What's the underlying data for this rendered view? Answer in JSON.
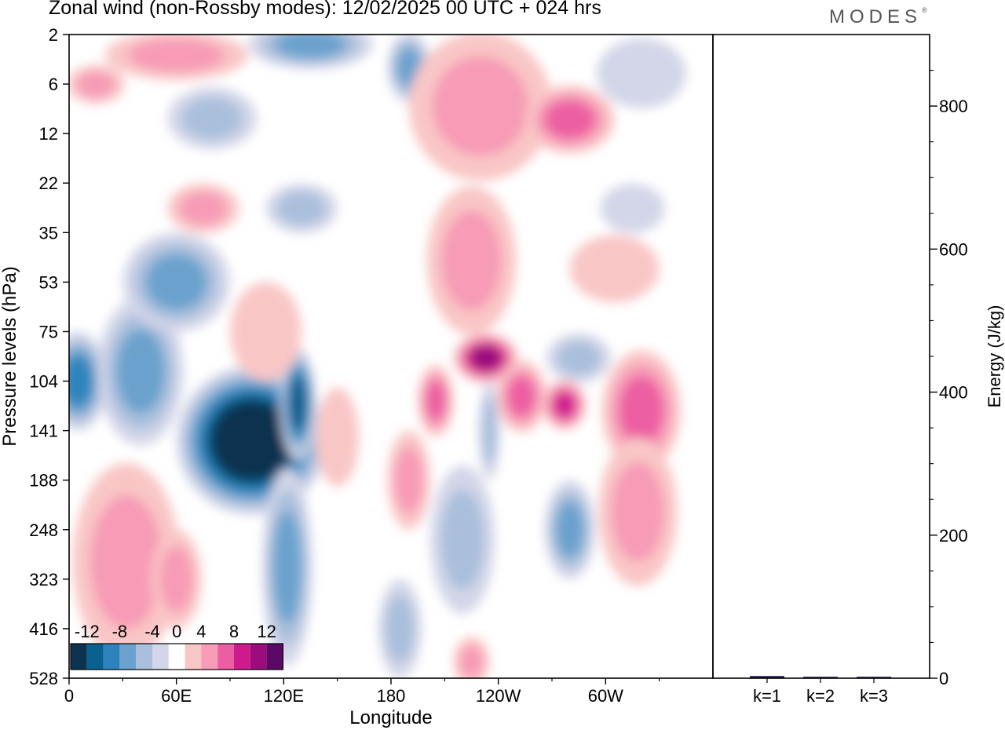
{
  "header": {
    "title": "Zonal wind (non-Rossby modes):  12/02/2025  00 UTC  + 024 hrs",
    "logo": "MODES",
    "logo_mark": "®"
  },
  "colors": {
    "negative": [
      "#0d3350",
      "#09618e",
      "#2d84bc",
      "#6aa2cd",
      "#a9bfdc",
      "#d3d6e8"
    ],
    "zero": "#ffffff",
    "positive": [
      "#f9c6c6",
      "#f79bb6",
      "#ec5ea2",
      "#cf1a8d",
      "#9b0c7d",
      "#5a0a66"
    ],
    "axis": "#000000",
    "bar": "#1a1a50"
  },
  "chart_data": [
    {
      "type": "heatmap",
      "variable": "zonal wind",
      "xlabel": "Longitude",
      "ylabel": "Pressure levels (hPa)",
      "x_ticks": [
        "0",
        "60E",
        "120E",
        "180",
        "120W",
        "60W"
      ],
      "y_ticks": [
        "2",
        "6",
        "12",
        "22",
        "35",
        "53",
        "75",
        "104",
        "141",
        "188",
        "248",
        "323",
        "416",
        "528"
      ],
      "colorbar": {
        "labels": [
          "-12",
          "-8",
          "-4",
          "0",
          "4",
          "8",
          "12"
        ],
        "bins": [
          -14,
          -12,
          -10,
          -8,
          -6,
          -4,
          -2,
          2,
          4,
          6,
          8,
          10,
          12,
          14
        ]
      },
      "features": [
        {
          "sign": "negative",
          "peak": -14,
          "lon_center": 102,
          "level_center": 141,
          "lon_width": 42,
          "level_span": [
            104,
            248
          ]
        },
        {
          "sign": "negative",
          "peak": -11,
          "lon_center": 128,
          "level_center": 118,
          "lon_width": 10,
          "level_span": [
            85,
            170
          ]
        },
        {
          "sign": "negative",
          "peak": -7,
          "lon_center": 122,
          "level_center": 290,
          "lon_width": 14,
          "level_span": [
            188,
            528
          ]
        },
        {
          "sign": "negative",
          "peak": -8,
          "lon_center": 5,
          "level_center": 104,
          "lon_width": 16,
          "level_span": [
            75,
            141
          ]
        },
        {
          "sign": "negative",
          "peak": -6,
          "lon_center": 40,
          "level_center": 104,
          "lon_width": 24,
          "level_span": [
            53,
            141
          ]
        },
        {
          "sign": "negative",
          "peak": -6,
          "lon_center": 60,
          "level_center": 53,
          "lon_width": 30,
          "level_span": [
            35,
            75
          ]
        },
        {
          "sign": "negative",
          "peak": -6,
          "lon_center": 135,
          "level_center": 2,
          "lon_width": 35,
          "level_span": [
            2,
            6
          ]
        },
        {
          "sign": "negative",
          "peak": -6,
          "lon_center": 190,
          "level_center": 4,
          "lon_width": 12,
          "level_span": [
            2,
            8
          ]
        },
        {
          "sign": "negative",
          "peak": -5,
          "lon_center": 80,
          "level_center": 10,
          "lon_width": 25,
          "level_span": [
            6,
            14
          ]
        },
        {
          "sign": "negative",
          "peak": -4,
          "lon_center": 130,
          "level_center": 28,
          "lon_width": 20,
          "level_span": [
            22,
            35
          ]
        },
        {
          "sign": "negative",
          "peak": -5,
          "lon_center": 220,
          "level_center": 248,
          "lon_width": 18,
          "level_span": [
            188,
            416
          ]
        },
        {
          "sign": "negative",
          "peak": -7,
          "lon_center": 280,
          "level_center": 248,
          "lon_width": 14,
          "level_span": [
            188,
            323
          ]
        },
        {
          "sign": "negative",
          "peak": -4,
          "lon_center": 235,
          "level_center": 141,
          "lon_width": 6,
          "level_span": [
            104,
            188
          ]
        },
        {
          "sign": "negative",
          "peak": -5,
          "lon_center": 285,
          "level_center": 90,
          "lon_width": 18,
          "level_span": [
            75,
            104
          ]
        },
        {
          "sign": "negative",
          "peak": -4,
          "lon_center": 185,
          "level_center": 416,
          "lon_width": 12,
          "level_span": [
            323,
            528
          ]
        },
        {
          "sign": "negative",
          "peak": -3,
          "lon_center": 315,
          "level_center": 28,
          "lon_width": 18,
          "level_span": [
            22,
            35
          ]
        },
        {
          "sign": "negative",
          "peak": -3,
          "lon_center": 320,
          "level_center": 5,
          "lon_width": 25,
          "level_span": [
            2,
            8
          ]
        },
        {
          "sign": "positive",
          "peak": 11,
          "lon_center": 233,
          "level_center": 90,
          "lon_width": 18,
          "level_span": [
            75,
            104
          ]
        },
        {
          "sign": "positive",
          "peak": 7,
          "lon_center": 205,
          "level_center": 120,
          "lon_width": 10,
          "level_span": [
            90,
            141
          ]
        },
        {
          "sign": "positive",
          "peak": 7,
          "lon_center": 253,
          "level_center": 115,
          "lon_width": 14,
          "level_span": [
            90,
            141
          ]
        },
        {
          "sign": "positive",
          "peak": 8,
          "lon_center": 277,
          "level_center": 120,
          "lon_width": 12,
          "level_span": [
            104,
            141
          ]
        },
        {
          "sign": "positive",
          "peak": 7,
          "lon_center": 320,
          "level_center": 120,
          "lon_width": 22,
          "level_span": [
            90,
            188
          ]
        },
        {
          "sign": "positive",
          "peak": 5,
          "lon_center": 318,
          "level_center": 230,
          "lon_width": 22,
          "level_span": [
            141,
            323
          ]
        },
        {
          "sign": "positive",
          "peak": 5,
          "lon_center": 190,
          "level_center": 188,
          "lon_width": 12,
          "level_span": [
            141,
            248
          ]
        },
        {
          "sign": "positive",
          "peak": 4,
          "lon_center": 32,
          "level_center": 330,
          "lon_width": 30,
          "level_span": [
            141,
            416
          ]
        },
        {
          "sign": "positive",
          "peak": 5,
          "lon_center": 60,
          "level_center": 323,
          "lon_width": 14,
          "level_span": [
            248,
            416
          ]
        },
        {
          "sign": "positive",
          "peak": 5,
          "lon_center": 230,
          "level_center": 8,
          "lon_width": 40,
          "level_span": [
            2,
            22
          ]
        },
        {
          "sign": "positive",
          "peak": 6,
          "lon_center": 280,
          "level_center": 10,
          "lon_width": 25,
          "level_span": [
            6,
            15
          ]
        },
        {
          "sign": "positive",
          "peak": 5,
          "lon_center": 225,
          "level_center": 45,
          "lon_width": 25,
          "level_span": [
            22,
            75
          ]
        },
        {
          "sign": "positive",
          "peak": 4,
          "lon_center": 75,
          "level_center": 28,
          "lon_width": 20,
          "level_span": [
            22,
            35
          ]
        },
        {
          "sign": "positive",
          "peak": 4,
          "lon_center": 60,
          "level_center": 3,
          "lon_width": 40,
          "level_span": [
            2,
            6
          ]
        },
        {
          "sign": "positive",
          "peak": 4,
          "lon_center": 15,
          "level_center": 6,
          "lon_width": 16,
          "level_span": [
            4,
            8
          ]
        },
        {
          "sign": "positive",
          "peak": 3,
          "lon_center": 110,
          "level_center": 75,
          "lon_width": 20,
          "level_span": [
            53,
            104
          ]
        },
        {
          "sign": "positive",
          "peak": 3,
          "lon_center": 305,
          "level_center": 48,
          "lon_width": 25,
          "level_span": [
            35,
            60
          ]
        },
        {
          "sign": "positive",
          "peak": 3,
          "lon_center": 150,
          "level_center": 150,
          "lon_width": 12,
          "level_span": [
            104,
            188
          ]
        },
        {
          "sign": "positive",
          "peak": 4,
          "lon_center": 225,
          "level_center": 500,
          "lon_width": 10,
          "level_span": [
            416,
            528
          ]
        }
      ]
    },
    {
      "type": "bar",
      "categories": [
        "k=1",
        "k=2",
        "k=3"
      ],
      "values": [
        3,
        2,
        2
      ],
      "ylabel": "Energy (J/kg)",
      "ylim": [
        0,
        900
      ],
      "y_ticks": [
        "0",
        "200",
        "400",
        "600",
        "800"
      ]
    }
  ]
}
